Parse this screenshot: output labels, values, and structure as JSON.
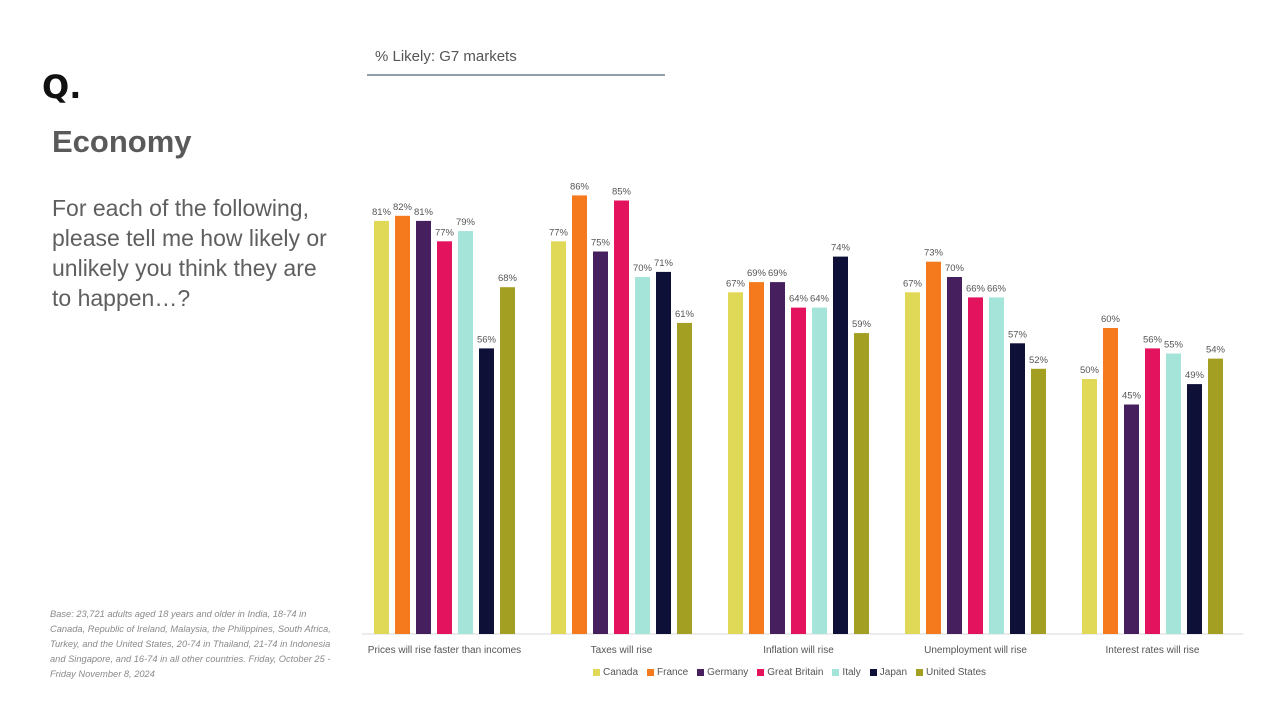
{
  "brand": {
    "logo_text": "Q."
  },
  "header": {
    "title": "Economy",
    "question": "For each of the following, please tell me how likely or unlikely you think they are to happen…?"
  },
  "chart_subtitle": "% Likely: G7 markets",
  "footnote": "Base: 23,721 adults aged 18 years and older in India, 18-74 in Canada, Republic of Ireland, Malaysia, the Philippines, South Africa, Turkey, and the United States, 20-74 in Thailand, 21-74 in Indonesia and Singapore, and 16-74 in all other countries. Friday, October 25 - Friday November 8, 2024",
  "colors": {
    "Canada": "#e0d857",
    "France": "#f57a1d",
    "Germany": "#46205e",
    "Great Britain": "#e4135d",
    "Italy": "#a4e4d9",
    "Japan": "#0e1037",
    "United States": "#a39f22"
  },
  "chart_data": {
    "type": "bar",
    "title": "% Likely: G7 markets",
    "xlabel": "",
    "ylabel": "",
    "ylim": [
      0,
      100
    ],
    "grid": false,
    "legend_position": "bottom",
    "categories": [
      "Prices will rise faster than incomes",
      "Taxes will rise",
      "Inflation will rise",
      "Unemployment will rise",
      "Interest rates will rise"
    ],
    "series": [
      {
        "name": "Canada",
        "values": [
          81,
          77,
          67,
          67,
          50
        ],
        "labels": [
          "81%",
          "77%",
          "67%",
          "67%",
          "50%"
        ]
      },
      {
        "name": "France",
        "values": [
          82,
          86,
          69,
          73,
          60
        ],
        "labels": [
          "82%",
          "86%",
          "69%",
          "73%",
          "60%"
        ]
      },
      {
        "name": "Germany",
        "values": [
          81,
          75,
          69,
          70,
          45
        ],
        "labels": [
          "81%",
          "75%",
          "69%",
          "70%",
          "45%"
        ]
      },
      {
        "name": "Great Britain",
        "values": [
          77,
          85,
          64,
          66,
          56
        ],
        "labels": [
          "77%",
          "85%",
          "64%",
          "66%",
          "56%"
        ]
      },
      {
        "name": "Italy",
        "values": [
          79,
          70,
          64,
          66,
          55
        ],
        "labels": [
          "79%",
          "70%",
          "64%",
          "66%",
          "55%"
        ]
      },
      {
        "name": "Japan",
        "values": [
          56,
          71,
          74,
          57,
          49
        ],
        "labels": [
          "56%",
          "71%",
          "74%",
          "57%",
          "49%"
        ]
      },
      {
        "name": "United States",
        "values": [
          68,
          61,
          59,
          52,
          54
        ],
        "labels": [
          "68%",
          "61%",
          "59%",
          "52%",
          "54%"
        ]
      }
    ]
  }
}
